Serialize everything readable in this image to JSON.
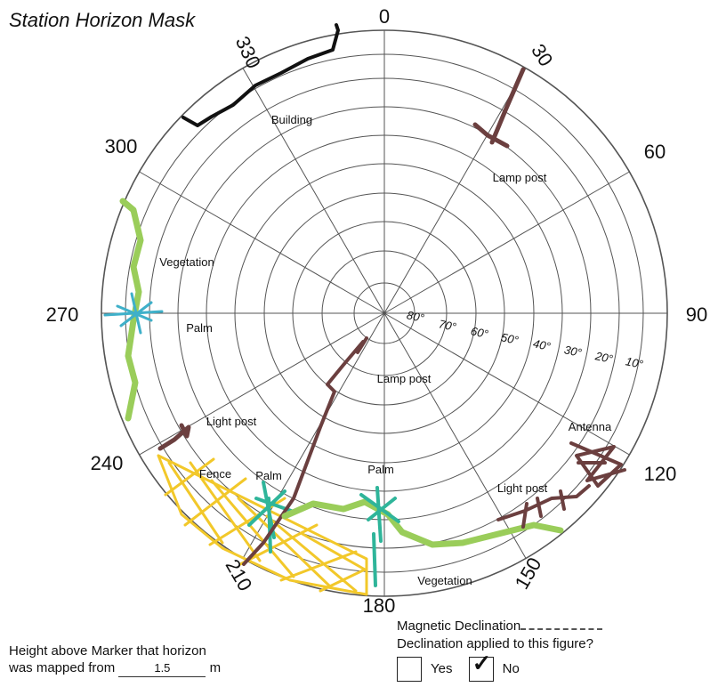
{
  "title": "Station Horizon Mask",
  "azimuth_labels": [
    "0",
    "30",
    "60",
    "90",
    "120",
    "150",
    "180",
    "210",
    "240",
    "270",
    "300",
    "330"
  ],
  "elevation_labels": [
    "80°",
    "70°",
    "60°",
    "50°",
    "40°",
    "30°",
    "20°",
    "10°"
  ],
  "obstructions": [
    {
      "label": "Building",
      "color": "#111111"
    },
    {
      "label": "Lamp post",
      "color": "#6b3f3f"
    },
    {
      "label": "Vegetation",
      "color": "#9acd5a"
    },
    {
      "label": "Palm",
      "color": "#3fb0c9"
    },
    {
      "label": "Light post",
      "color": "#6b3f3f"
    },
    {
      "label": "Fence",
      "color": "#f2c82a"
    },
    {
      "label": "Palm",
      "color": "#2fb59a"
    },
    {
      "label": "Lamp post",
      "color": "#6b3f3f"
    },
    {
      "label": "Palm",
      "color": "#2fb59a"
    },
    {
      "label": "Antenna",
      "color": "#6b3f3f"
    },
    {
      "label": "Light post",
      "color": "#6b3f3f"
    },
    {
      "label": "Vegetation",
      "color": "#9acd5a"
    }
  ],
  "footer": {
    "height_prefix": "Height above Marker that horizon",
    "height_line2": "was mapped from",
    "height_value": "1.5",
    "height_unit": "m",
    "mag_decl_label": "Magnetic Declination",
    "decl_applied_label": "Declination applied to this figure?",
    "yes_label": "Yes",
    "no_label": "No",
    "selected": "No"
  }
}
